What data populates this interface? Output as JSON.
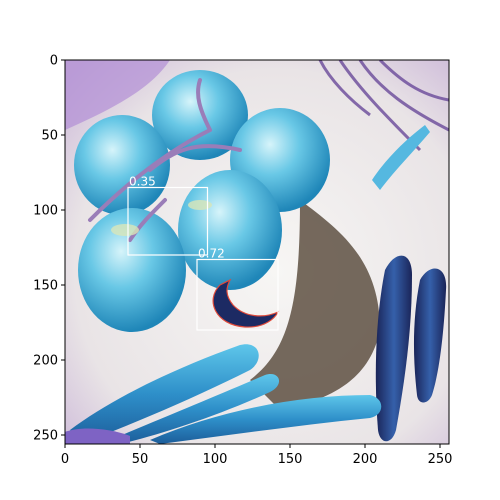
{
  "image": {
    "description_colors": {
      "background_light": "#f2f0ee",
      "tomato_cyan": "#48b8dc",
      "tomato_light": "#bdeaf4",
      "carrot_dark": "#1c2a63",
      "carrot_mid": "#2e5aa8",
      "purple_leaf": "#a97bd0",
      "shadow_brown": "#6a5a4a"
    }
  },
  "axes": {
    "x_ticks": [
      "0",
      "50",
      "100",
      "150",
      "200",
      "250"
    ],
    "y_ticks": [
      "0",
      "50",
      "100",
      "150",
      "200",
      "250"
    ],
    "x_tick_values": [
      0,
      50,
      100,
      150,
      200,
      250
    ],
    "y_tick_values": [
      0,
      50,
      100,
      150,
      200,
      250
    ],
    "x_range": [
      0,
      256
    ],
    "y_range": [
      0,
      256
    ],
    "y_inverted": true
  },
  "detections": [
    {
      "label": "0.35",
      "x0": 42,
      "y0": 85,
      "x1": 95,
      "y1": 130,
      "color": "#ffffff"
    },
    {
      "label": "0.72",
      "x0": 88,
      "y0": 133,
      "x1": 142,
      "y1": 180,
      "color": "#ffffff"
    }
  ]
}
